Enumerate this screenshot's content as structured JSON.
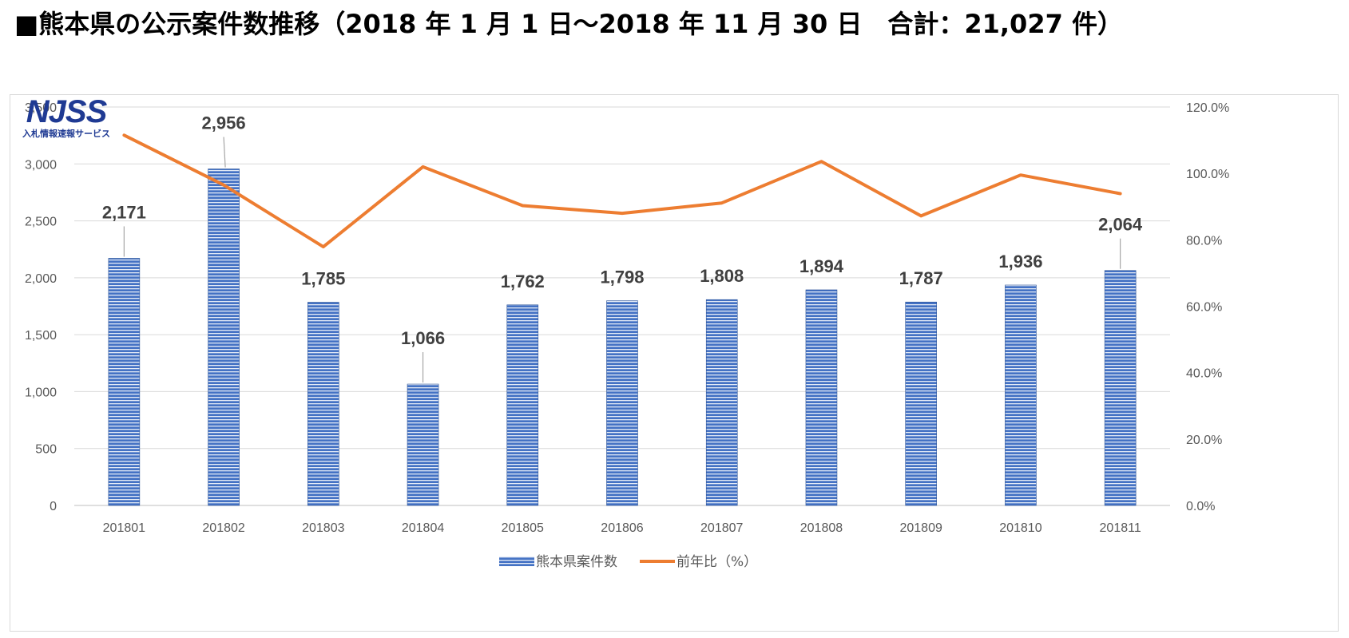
{
  "page": {
    "title": "■熊本県の公示案件数推移（2018 年 1 月 1 日～2018 年 11 月 30 日　合計：21,027 件）"
  },
  "logo": {
    "text": "NJSS",
    "subtext": "入札情報速報サービス"
  },
  "colors": {
    "bar": "#4472c4",
    "bar_stripe": "#ffffff",
    "line": "#ed7d31",
    "grid": "#d9d9d9",
    "logo": "#1f3a93"
  },
  "chart_data": {
    "type": "bar",
    "title": "",
    "categories": [
      "201801",
      "201802",
      "201803",
      "201804",
      "201805",
      "201806",
      "201807",
      "201808",
      "201809",
      "201810",
      "201811"
    ],
    "series": [
      {
        "name": "熊本県案件数",
        "type": "bar",
        "axis": "left",
        "values": [
          2171,
          2956,
          1785,
          1066,
          1762,
          1798,
          1808,
          1894,
          1787,
          1936,
          2064
        ],
        "labels": [
          "2,171",
          "2,956",
          "1,785",
          "1,066",
          "1,762",
          "1,798",
          "1,808",
          "1,894",
          "1,787",
          "1,936",
          "2,064"
        ]
      },
      {
        "name": "前年比（%）",
        "type": "line",
        "axis": "right",
        "values": [
          111.5,
          96.5,
          77.9,
          102.0,
          90.3,
          88.0,
          91.1,
          103.6,
          87.2,
          99.5,
          93.9
        ]
      }
    ],
    "y_left": {
      "min": 0,
      "max": 3500,
      "step": 500,
      "ticks": [
        "0",
        "500",
        "1,000",
        "1,500",
        "2,000",
        "2,500",
        "3,000",
        "3,500"
      ]
    },
    "y_right": {
      "min": 0,
      "max": 120,
      "step": 20,
      "ticks": [
        "0.0%",
        "20.0%",
        "40.0%",
        "60.0%",
        "80.0%",
        "100.0%",
        "120.0%"
      ]
    },
    "grid": true,
    "legend": "bottom-center"
  }
}
